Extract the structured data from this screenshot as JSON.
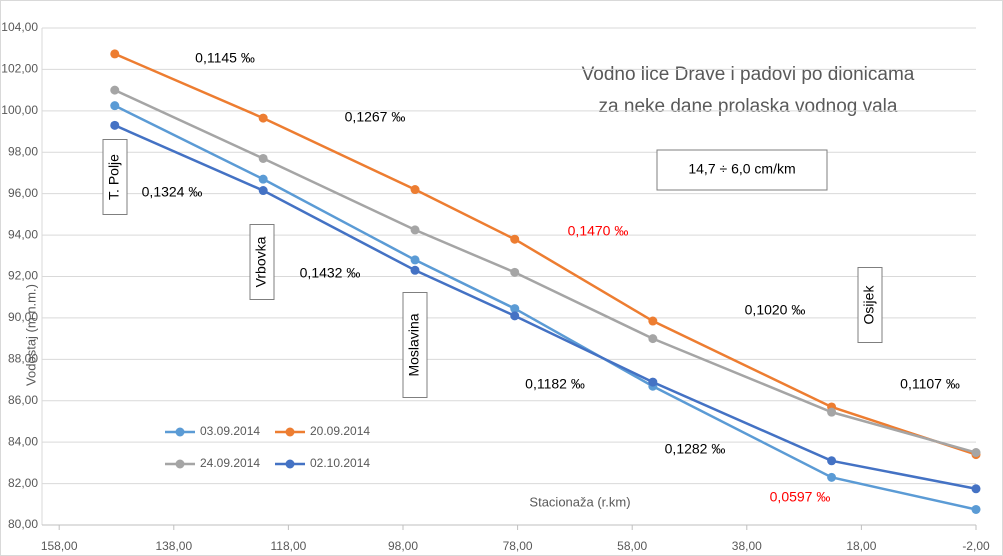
{
  "chart_data": {
    "type": "line",
    "title": "Vodno lice Drave i padovi po dionicama",
    "subtitle": "za neke dane prolaska vodnog vala",
    "x_label": "Stacionaža (r.km)",
    "y_label": "Vodostaj (m n.m.)",
    "x": [
      148.3,
      122.4,
      95.9,
      78.5,
      54.4,
      23.2,
      -2
    ],
    "series": [
      {
        "name": "03.09.2014",
        "color": "#5b9bd5",
        "values": [
          100.25,
          96.7,
          92.8,
          90.45,
          86.7,
          82.3,
          80.75
        ]
      },
      {
        "name": "20.09.2014",
        "color": "#ed7d31",
        "values": [
          102.75,
          99.65,
          96.2,
          93.8,
          89.85,
          85.7,
          83.4
        ]
      },
      {
        "name": "24.09.2014",
        "color": "#a5a5a5",
        "values": [
          101.0,
          97.7,
          94.25,
          92.2,
          89.0,
          85.45,
          83.5
        ]
      },
      {
        "name": "02.10.2014",
        "color": "#4472c4",
        "values": [
          99.3,
          96.15,
          92.3,
          90.1,
          86.9,
          83.1,
          81.75
        ]
      }
    ],
    "xlim": [
      161,
      -2
    ],
    "xticks": [
      {
        "value": 158,
        "label": "158,00"
      },
      {
        "value": 138,
        "label": "138,00"
      },
      {
        "value": 118,
        "label": "118,00"
      },
      {
        "value": 98,
        "label": "98,00"
      },
      {
        "value": 78,
        "label": "78,00"
      },
      {
        "value": 58,
        "label": "58,00"
      },
      {
        "value": 38,
        "label": "38,00"
      },
      {
        "value": 18,
        "label": "18,00"
      },
      {
        "value": -2,
        "label": "-2,00"
      }
    ],
    "ylim": [
      80,
      104
    ],
    "yticks": [
      {
        "value": 80,
        "label": "80,00"
      },
      {
        "value": 82,
        "label": "82,00"
      },
      {
        "value": 84,
        "label": "84,00"
      },
      {
        "value": 86,
        "label": "86,00"
      },
      {
        "value": 88,
        "label": "88,00"
      },
      {
        "value": 90,
        "label": "90,00"
      },
      {
        "value": 92,
        "label": "92,00"
      },
      {
        "value": 94,
        "label": "94,00"
      },
      {
        "value": 96,
        "label": "96,00"
      },
      {
        "value": 98,
        "label": "98,00"
      },
      {
        "value": 100,
        "label": "100,00"
      },
      {
        "value": 102,
        "label": "102,00"
      },
      {
        "value": 104,
        "label": "104,00"
      }
    ],
    "grid": true,
    "legend": "lower left",
    "annotations": [
      {
        "text": "0,1145 ‰",
        "color": "#000000"
      },
      {
        "text": "0,1267 ‰",
        "color": "#000000"
      },
      {
        "text": "0,1324 ‰",
        "color": "#000000"
      },
      {
        "text": "0,1432 ‰",
        "color": "#000000"
      },
      {
        "text": "0,1470 ‰",
        "color": "#ff0000"
      },
      {
        "text": "0,1020 ‰",
        "color": "#000000"
      },
      {
        "text": "0,1182 ‰",
        "color": "#000000"
      },
      {
        "text": "0,1107 ‰",
        "color": "#000000"
      },
      {
        "text": "0,1282 ‰",
        "color": "#000000"
      },
      {
        "text": "0,0597 ‰",
        "color": "#ff0000"
      }
    ],
    "stations": [
      "T. Polje",
      "Vrbovka",
      "Moslavina",
      "Osijek"
    ],
    "box_note": "14,7 ÷ 6,0 cm/km"
  }
}
